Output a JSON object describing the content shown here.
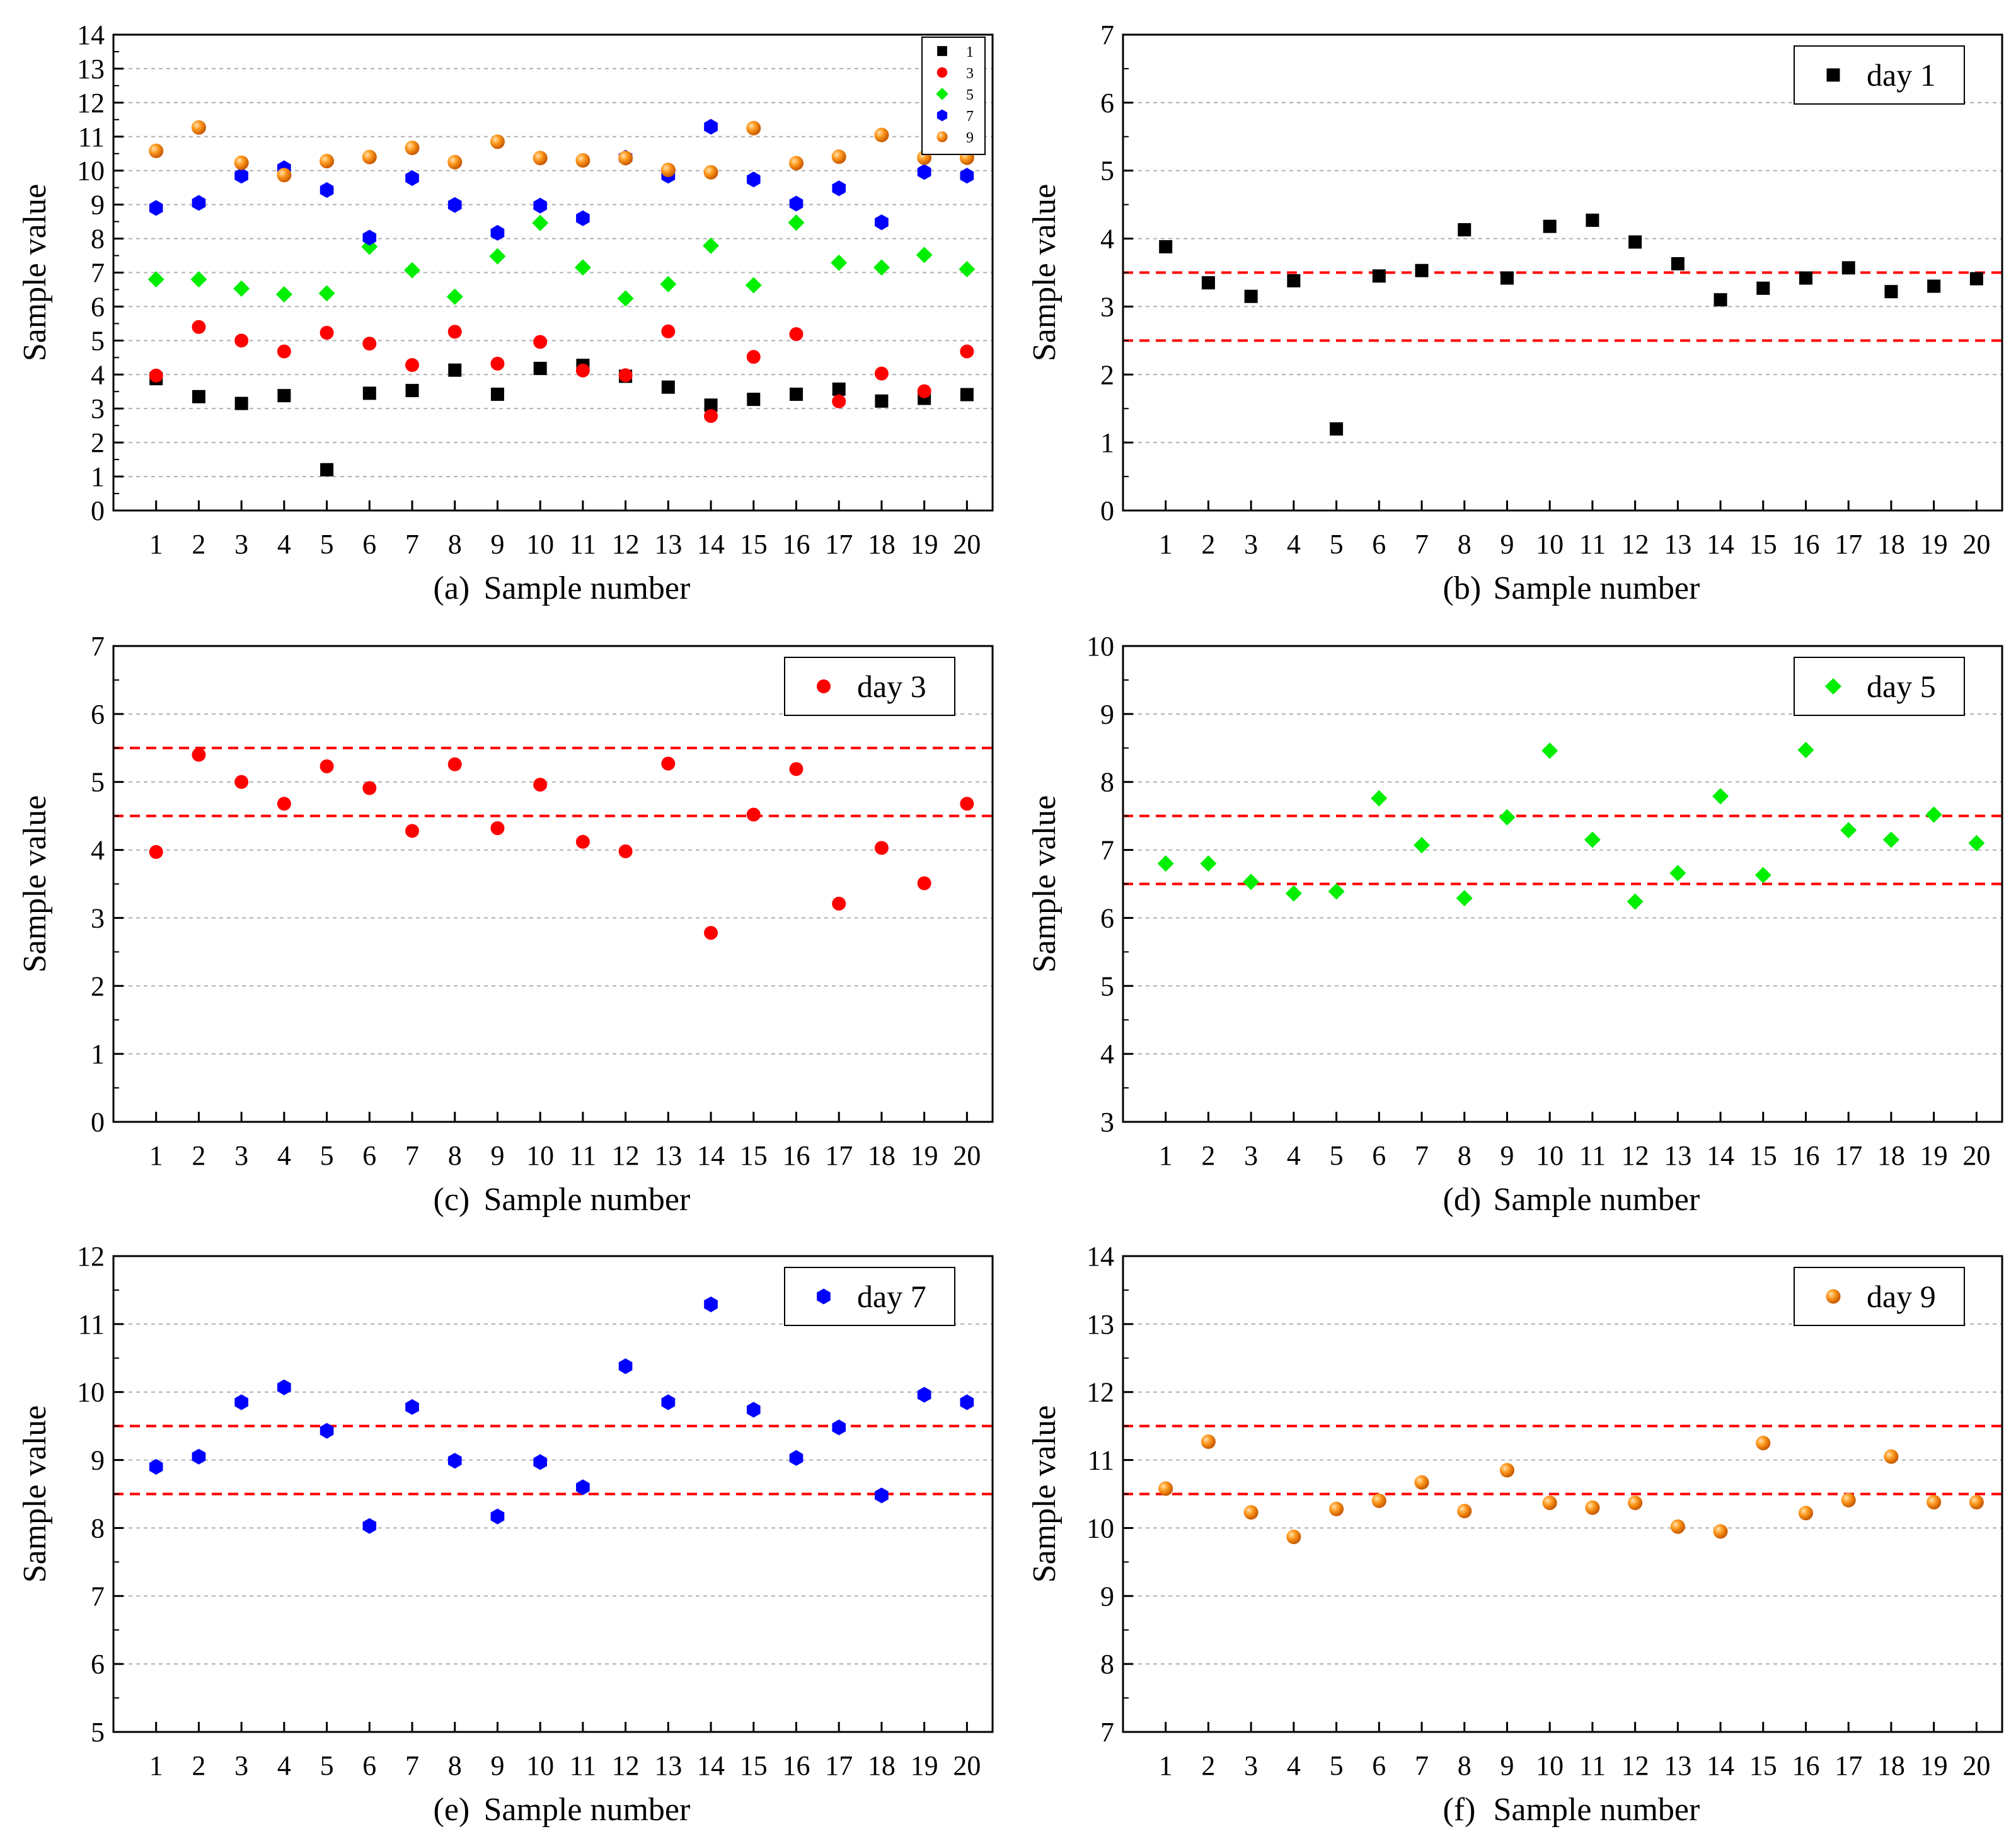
{
  "chart_data": [
    {
      "panel": "a",
      "type": "scatter",
      "caption_letter": "(a)",
      "xlabel": "Sample number",
      "ylabel": "Sample value",
      "ylim": [
        0,
        14
      ],
      "yticks": [
        "0",
        "1",
        "2",
        "3",
        "4",
        "5",
        "6",
        "7",
        "8",
        "9",
        "10",
        "11",
        "12",
        "13",
        "14"
      ],
      "categories": [
        "1",
        "2",
        "3",
        "4",
        "5",
        "6",
        "7",
        "8",
        "9",
        "10",
        "11",
        "12",
        "13",
        "14",
        "15",
        "16",
        "17",
        "18",
        "19",
        "20"
      ],
      "grid": true,
      "legend_position": "top-right",
      "reference_lines": [],
      "series": [
        {
          "name": "1",
          "marker": "square",
          "color": "#000000",
          "values": [
            3.88,
            3.35,
            3.15,
            3.38,
            1.2,
            3.45,
            3.53,
            4.13,
            3.42,
            4.18,
            4.27,
            3.95,
            3.63,
            3.1,
            3.27,
            3.42,
            3.57,
            3.22,
            3.3,
            3.41
          ]
        },
        {
          "name": "3",
          "marker": "circle",
          "color": "#ff0000",
          "values": [
            3.97,
            5.4,
            5.0,
            4.68,
            5.23,
            4.91,
            4.28,
            5.26,
            4.32,
            4.96,
            4.12,
            3.98,
            5.27,
            2.78,
            4.52,
            5.19,
            3.21,
            4.03,
            3.51,
            4.68
          ]
        },
        {
          "name": "5",
          "marker": "diamond",
          "color": "#00ee00",
          "values": [
            6.8,
            6.8,
            6.53,
            6.36,
            6.39,
            7.76,
            7.07,
            6.29,
            7.48,
            8.46,
            7.15,
            6.24,
            6.66,
            7.79,
            6.63,
            8.47,
            7.29,
            7.15,
            7.52,
            7.1
          ]
        },
        {
          "name": "7",
          "marker": "hexagon",
          "color": "#0000ff",
          "values": [
            8.9,
            9.05,
            9.85,
            10.07,
            9.43,
            8.03,
            9.78,
            8.99,
            8.17,
            8.97,
            8.6,
            10.38,
            9.85,
            11.29,
            9.74,
            9.03,
            9.48,
            8.48,
            9.96,
            9.85
          ]
        },
        {
          "name": "9",
          "marker": "ball",
          "color": "#ff8c00",
          "values": [
            10.58,
            11.27,
            10.23,
            9.87,
            10.28,
            10.4,
            10.67,
            10.25,
            10.85,
            10.37,
            10.3,
            10.37,
            10.02,
            9.95,
            11.25,
            10.22,
            10.41,
            11.05,
            10.38,
            10.38
          ]
        }
      ]
    },
    {
      "panel": "b",
      "type": "scatter",
      "caption_letter": "(b)",
      "xlabel": "Sample number",
      "ylabel": "Sample value",
      "ylim": [
        0,
        7
      ],
      "yticks": [
        "0",
        "1",
        "2",
        "3",
        "4",
        "5",
        "6",
        "7"
      ],
      "categories": [
        "1",
        "2",
        "3",
        "4",
        "5",
        "6",
        "7",
        "8",
        "9",
        "10",
        "11",
        "12",
        "13",
        "14",
        "15",
        "16",
        "17",
        "18",
        "19",
        "20"
      ],
      "grid": true,
      "legend_position": "top-right",
      "reference_lines": [
        2.5,
        3.5
      ],
      "series": [
        {
          "name": "day 1",
          "marker": "square",
          "color": "#000000",
          "values": [
            3.88,
            3.35,
            3.15,
            3.38,
            1.2,
            3.45,
            3.53,
            4.13,
            3.42,
            4.18,
            4.27,
            3.95,
            3.63,
            3.1,
            3.27,
            3.42,
            3.57,
            3.22,
            3.3,
            3.41
          ]
        }
      ]
    },
    {
      "panel": "c",
      "type": "scatter",
      "caption_letter": "(c)",
      "xlabel": "Sample number",
      "ylabel": "Sample value",
      "ylim": [
        0,
        7
      ],
      "yticks": [
        "0",
        "1",
        "2",
        "3",
        "4",
        "5",
        "6",
        "7"
      ],
      "categories": [
        "1",
        "2",
        "3",
        "4",
        "5",
        "6",
        "7",
        "8",
        "9",
        "10",
        "11",
        "12",
        "13",
        "14",
        "15",
        "16",
        "17",
        "18",
        "19",
        "20"
      ],
      "grid": true,
      "legend_position": "top-right",
      "reference_lines": [
        4.5,
        5.5
      ],
      "series": [
        {
          "name": "day 3",
          "marker": "circle",
          "color": "#ff0000",
          "values": [
            3.97,
            5.4,
            5.0,
            4.68,
            5.23,
            4.91,
            4.28,
            5.26,
            4.32,
            4.96,
            4.12,
            3.98,
            5.27,
            2.78,
            4.52,
            5.19,
            3.21,
            4.03,
            3.51,
            4.68
          ]
        }
      ]
    },
    {
      "panel": "d",
      "type": "scatter",
      "caption_letter": "(d)",
      "xlabel": "Sample number",
      "ylabel": "Sample value",
      "ylim": [
        3,
        10
      ],
      "yticks": [
        "3",
        "4",
        "5",
        "6",
        "7",
        "8",
        "9",
        "10"
      ],
      "categories": [
        "1",
        "2",
        "3",
        "4",
        "5",
        "6",
        "7",
        "8",
        "9",
        "10",
        "11",
        "12",
        "13",
        "14",
        "15",
        "16",
        "17",
        "18",
        "19",
        "20"
      ],
      "grid": true,
      "legend_position": "top-right",
      "reference_lines": [
        6.5,
        7.5
      ],
      "series": [
        {
          "name": "day 5",
          "marker": "diamond",
          "color": "#00ee00",
          "values": [
            6.8,
            6.8,
            6.53,
            6.36,
            6.39,
            7.76,
            7.07,
            6.29,
            7.48,
            8.46,
            7.15,
            6.24,
            6.66,
            7.79,
            6.63,
            8.47,
            7.29,
            7.15,
            7.52,
            7.1
          ]
        }
      ]
    },
    {
      "panel": "e",
      "type": "scatter",
      "caption_letter": "(e)",
      "xlabel": "Sample number",
      "ylabel": "Sample value",
      "ylim": [
        5,
        12
      ],
      "yticks": [
        "5",
        "6",
        "7",
        "8",
        "9",
        "10",
        "11",
        "12"
      ],
      "categories": [
        "1",
        "2",
        "3",
        "4",
        "5",
        "6",
        "7",
        "8",
        "9",
        "10",
        "11",
        "12",
        "13",
        "14",
        "15",
        "16",
        "17",
        "18",
        "19",
        "20"
      ],
      "grid": true,
      "legend_position": "top-right",
      "reference_lines": [
        8.5,
        9.5
      ],
      "series": [
        {
          "name": "day 7",
          "marker": "hexagon",
          "color": "#0000ff",
          "values": [
            8.9,
            9.05,
            9.85,
            10.07,
            9.43,
            8.03,
            9.78,
            8.99,
            8.17,
            8.97,
            8.6,
            10.38,
            9.85,
            11.29,
            9.74,
            9.03,
            9.48,
            8.48,
            9.96,
            9.85
          ]
        }
      ]
    },
    {
      "panel": "f",
      "type": "scatter",
      "caption_letter": "(f)",
      "xlabel": "Sample number",
      "ylabel": "Sample value",
      "ylim": [
        7,
        14
      ],
      "yticks": [
        "7",
        "8",
        "9",
        "10",
        "11",
        "12",
        "13",
        "14"
      ],
      "categories": [
        "1",
        "2",
        "3",
        "4",
        "5",
        "6",
        "7",
        "8",
        "9",
        "10",
        "11",
        "12",
        "13",
        "14",
        "15",
        "16",
        "17",
        "18",
        "19",
        "20"
      ],
      "grid": true,
      "legend_position": "top-right",
      "reference_lines": [
        10.5,
        11.5
      ],
      "series": [
        {
          "name": "day 9",
          "marker": "ball",
          "color": "#ff8c00",
          "values": [
            10.58,
            11.27,
            10.23,
            9.87,
            10.28,
            10.4,
            10.67,
            10.25,
            10.85,
            10.37,
            10.3,
            10.37,
            10.02,
            9.95,
            11.25,
            10.22,
            10.41,
            11.05,
            10.38,
            10.38
          ]
        }
      ]
    }
  ]
}
